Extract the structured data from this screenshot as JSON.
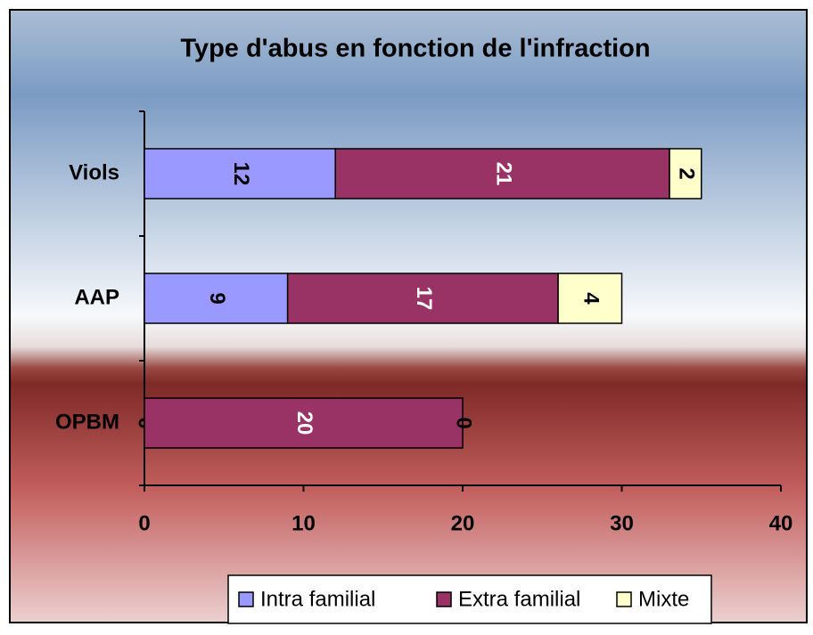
{
  "chart_data": {
    "type": "stacked_bar_horizontal",
    "title": "Type d'abus en fonction de l'infraction",
    "categories": [
      "Viols",
      "AAP",
      "OPBM"
    ],
    "series": [
      {
        "name": "Intra familial",
        "color": "#9999ff",
        "label_color": "#000000",
        "values": [
          12,
          9,
          0
        ]
      },
      {
        "name": "Extra familial",
        "color": "#993366",
        "label_color": "#ffffff",
        "values": [
          21,
          17,
          20
        ]
      },
      {
        "name": "Mixte",
        "color": "#ffffcc",
        "label_color": "#000000",
        "values": [
          2,
          4,
          0
        ]
      }
    ],
    "xlim": [
      0,
      40
    ],
    "xticks": [
      0,
      10,
      20,
      30,
      40
    ],
    "legend": "bottom"
  }
}
